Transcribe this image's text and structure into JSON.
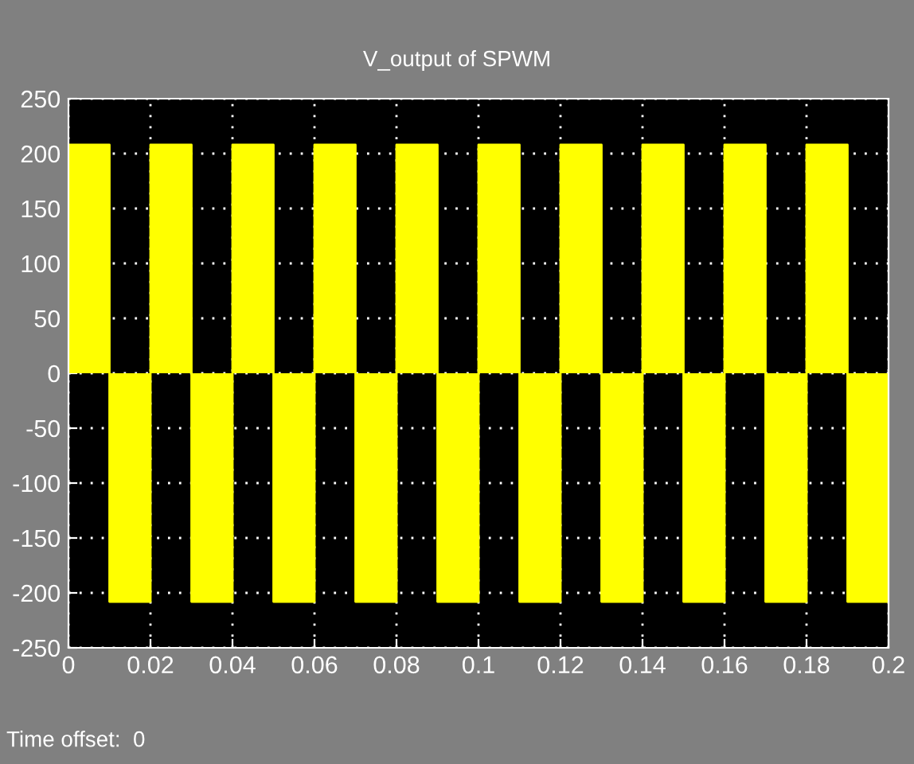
{
  "chart_data": {
    "type": "step",
    "title": "V_output of SPWM",
    "x": [
      0,
      0.01,
      0.02,
      0.03,
      0.04,
      0.05,
      0.06,
      0.07,
      0.08,
      0.09,
      0.1,
      0.11,
      0.12,
      0.13,
      0.14,
      0.15,
      0.16,
      0.17,
      0.18,
      0.19,
      0.2
    ],
    "series": [
      {
        "color": "#ffff00",
        "values": [
          208,
          -208,
          208,
          -208,
          208,
          -208,
          208,
          -208,
          208,
          -208,
          208,
          -208,
          208,
          -208,
          208,
          -208,
          208,
          -208,
          208,
          -208,
          -208
        ]
      }
    ],
    "xlim": [
      0,
      0.2
    ],
    "xticks": [
      0,
      0.02,
      0.04,
      0.06,
      0.08,
      0.1,
      0.12,
      0.14,
      0.16,
      0.18,
      0.2
    ],
    "ylim": [
      -250,
      250
    ],
    "yticks": [
      -250,
      -200,
      -150,
      -100,
      -50,
      0,
      50,
      100,
      150,
      200,
      250
    ],
    "grid": true,
    "legend": false,
    "annotations": [
      "Time offset:  0"
    ]
  }
}
